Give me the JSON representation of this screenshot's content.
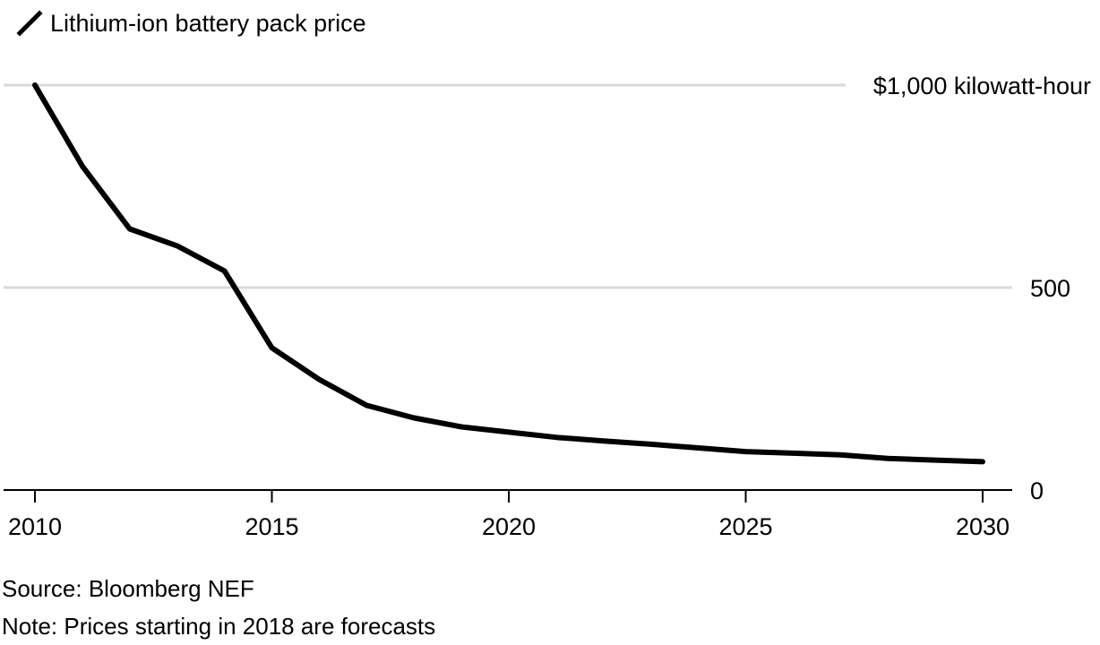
{
  "legend": {
    "label": "Lithium-ion battery pack price"
  },
  "footer": {
    "source": "Source: Bloomberg NEF",
    "note": "Note: Prices starting in 2018 are forecasts"
  },
  "chart_data": {
    "type": "line",
    "series": [
      {
        "name": "Lithium-ion battery pack price",
        "x": [
          2010,
          2011,
          2012,
          2013,
          2014,
          2015,
          2016,
          2017,
          2018,
          2019,
          2020,
          2021,
          2022,
          2023,
          2024,
          2025,
          2026,
          2027,
          2028,
          2029,
          2030
        ],
        "values": [
          1000,
          800,
          645,
          603,
          541,
          351,
          273,
          209,
          178,
          156,
          143,
          130,
          121,
          113,
          104,
          95,
          91,
          87,
          78,
          74,
          70
        ]
      }
    ],
    "xlim": [
      2010,
      2030
    ],
    "ylim": [
      0,
      1000
    ],
    "x_ticks": [
      2010,
      2015,
      2020,
      2025,
      2030
    ],
    "x_tick_labels": [
      "2010",
      "2015",
      "2020",
      "2025",
      "2030"
    ],
    "y_ticks": [
      0,
      500,
      1000
    ],
    "y_tick_labels": [
      "0",
      "500",
      "$1,000 kilowatt-hour"
    ],
    "grid": true,
    "legend_position": "top-left",
    "line_color": "#000000",
    "grid_color": "#d9d9d9"
  }
}
